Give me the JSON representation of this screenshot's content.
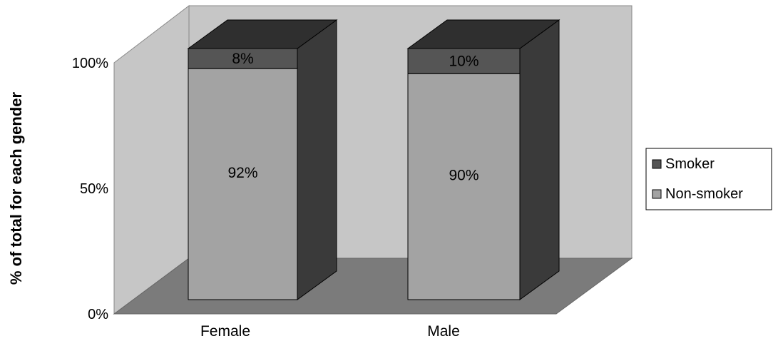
{
  "chart_data": {
    "type": "bar",
    "stacked": true,
    "three_d": true,
    "categories": [
      "Female",
      "Male"
    ],
    "series": [
      {
        "name": "Non-smoker",
        "values": [
          92,
          90
        ],
        "labels": [
          "92%",
          "90%"
        ]
      },
      {
        "name": "Smoker",
        "values": [
          8,
          10
        ],
        "labels": [
          "8%",
          "10%"
        ]
      }
    ],
    "ylabel": "% of total for each gender",
    "ylim": [
      0,
      100
    ],
    "yticks": [
      0,
      50,
      100
    ],
    "ytick_labels": [
      "0%",
      "50%",
      "100%"
    ],
    "grid": false,
    "legend": {
      "placement": "right",
      "entries": [
        {
          "name": "Smoker",
          "color": "#555555"
        },
        {
          "name": "Non-smoker",
          "color": "#a3a3a3"
        }
      ]
    },
    "colors": {
      "back_wall": "#c6c6c6",
      "side_wall": "#c6c6c6",
      "floor": "#7b7b7b",
      "non_smoker_front": "#a3a3a3",
      "smoker_front": "#555555",
      "bar_side": "#3a3a3a",
      "bar_top": "#2f2f2f"
    }
  }
}
